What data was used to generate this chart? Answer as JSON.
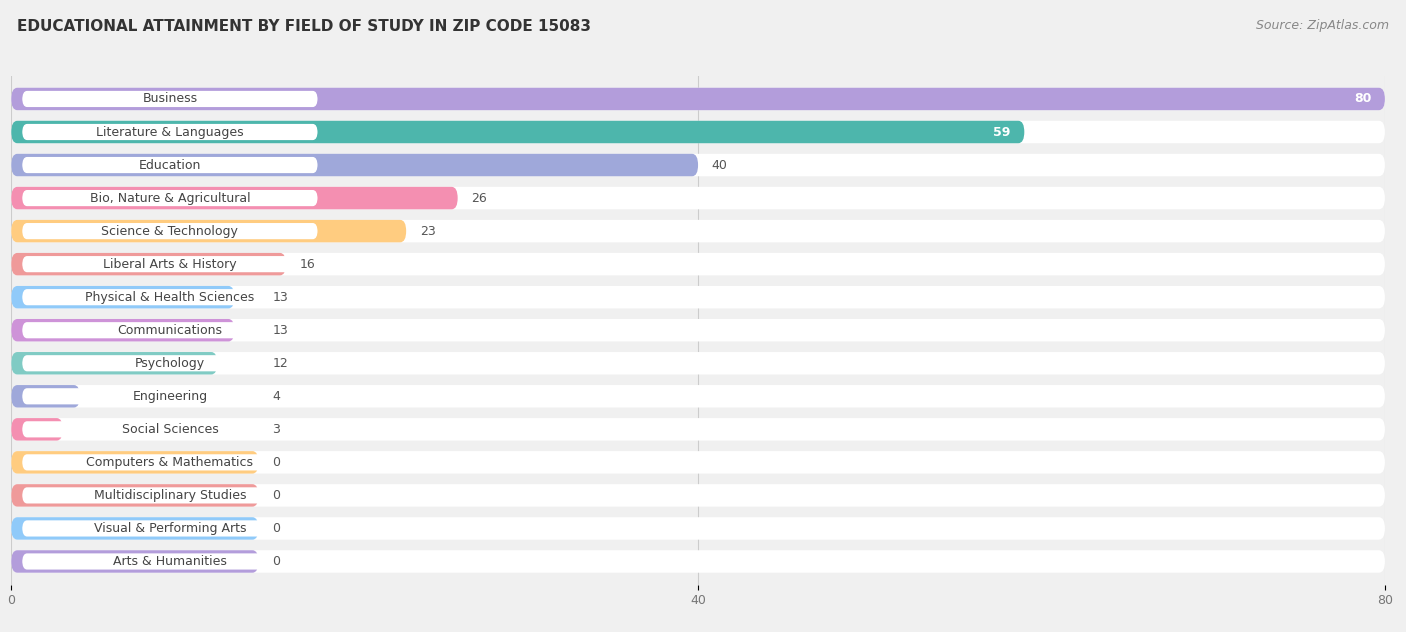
{
  "title": "EDUCATIONAL ATTAINMENT BY FIELD OF STUDY IN ZIP CODE 15083",
  "source": "Source: ZipAtlas.com",
  "categories": [
    "Business",
    "Literature & Languages",
    "Education",
    "Bio, Nature & Agricultural",
    "Science & Technology",
    "Liberal Arts & History",
    "Physical & Health Sciences",
    "Communications",
    "Psychology",
    "Engineering",
    "Social Sciences",
    "Computers & Mathematics",
    "Multidisciplinary Studies",
    "Visual & Performing Arts",
    "Arts & Humanities"
  ],
  "values": [
    80,
    59,
    40,
    26,
    23,
    16,
    13,
    13,
    12,
    4,
    3,
    0,
    0,
    0,
    0
  ],
  "bar_colors": [
    "#b39ddb",
    "#4db6ac",
    "#9fa8da",
    "#f48fb1",
    "#ffcc80",
    "#ef9a9a",
    "#90caf9",
    "#ce93d8",
    "#80cbc4",
    "#9fa8da",
    "#f48fb1",
    "#ffcc80",
    "#ef9a9a",
    "#90caf9",
    "#b39ddb"
  ],
  "xlim": [
    0,
    80
  ],
  "xticks": [
    0,
    40,
    80
  ],
  "background_color": "#f0f0f0",
  "bar_bg_color": "#ffffff",
  "title_fontsize": 11,
  "source_fontsize": 9,
  "label_fontsize": 9,
  "value_fontsize": 9
}
